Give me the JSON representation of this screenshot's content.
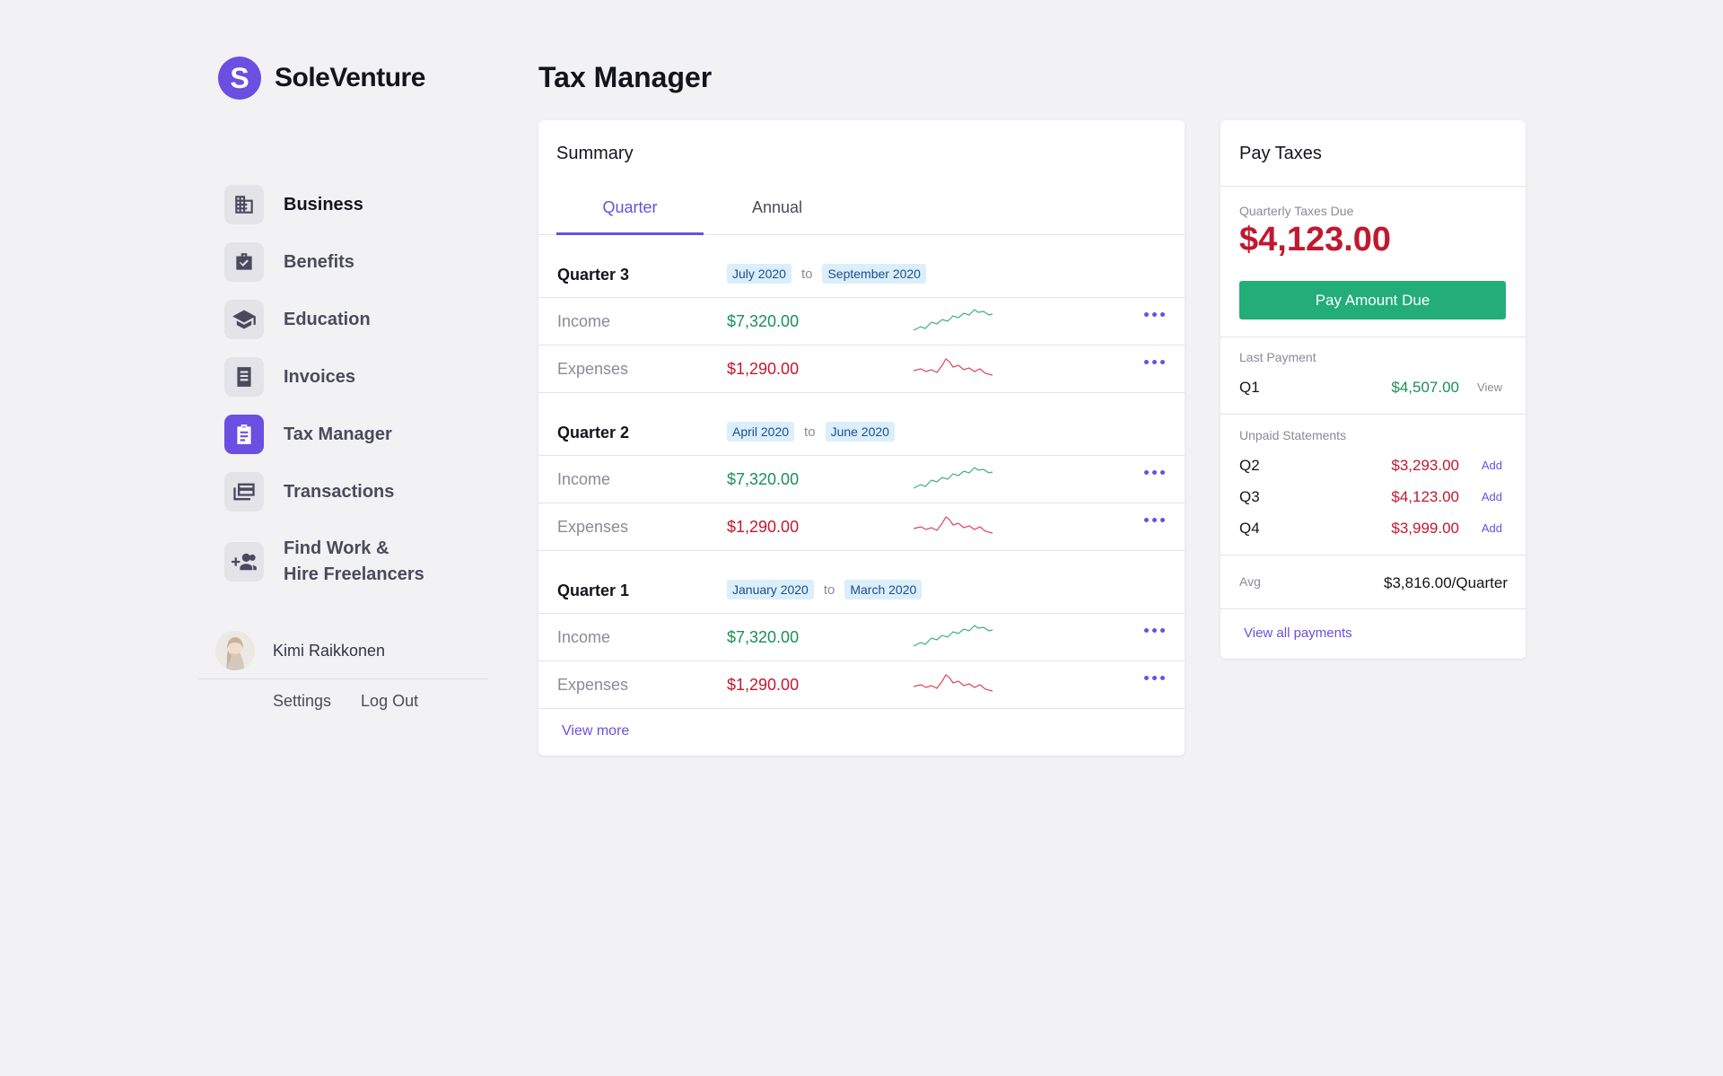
{
  "brand": {
    "logo_letter": "S",
    "name": "SoleVenture",
    "accent": "#6b4fe0"
  },
  "sidebar": {
    "items": [
      {
        "label": "Business",
        "icon": "building-icon"
      },
      {
        "label": "Benefits",
        "icon": "briefcase-check-icon"
      },
      {
        "label": "Education",
        "icon": "graduation-cap-icon"
      },
      {
        "label": "Invoices",
        "icon": "receipt-icon"
      },
      {
        "label": "Tax Manager",
        "icon": "clipboard-icon"
      },
      {
        "label": "Transactions",
        "icon": "cards-icon"
      },
      {
        "label_line1": "Find Work &",
        "label_line2": "Hire Freelancers",
        "icon": "add-people-icon"
      }
    ],
    "active": "Tax Manager"
  },
  "profile": {
    "name": "Kimi Raikkonen",
    "settings": "Settings",
    "logout": "Log Out"
  },
  "page": {
    "title": "Tax Manager"
  },
  "summary": {
    "title": "Summary",
    "tabs": [
      "Quarter",
      "Annual"
    ],
    "active_tab": "Quarter",
    "to_label": "to",
    "quarters": [
      {
        "name": "Quarter 3",
        "from": "July 2020",
        "to": "September 2020",
        "income_label": "Income",
        "income": "$7,320.00",
        "expenses_label": "Expenses",
        "expenses": "$1,290.00"
      },
      {
        "name": "Quarter 2",
        "from": "April 2020",
        "to": "June 2020",
        "income_label": "Income",
        "income": "$7,320.00",
        "expenses_label": "Expenses",
        "expenses": "$1,290.00"
      },
      {
        "name": "Quarter 1",
        "from": "January 2020",
        "to": "March 2020",
        "income_label": "Income",
        "income": "$7,320.00",
        "expenses_label": "Expenses",
        "expenses": "$1,290.00"
      }
    ],
    "view_more": "View more"
  },
  "pay_taxes": {
    "title": "Pay Taxes",
    "due_label": "Quarterly Taxes Due",
    "due_amount": "$4,123.00",
    "pay_button": "Pay Amount Due",
    "last_payment_label": "Last Payment",
    "last_payment": {
      "quarter": "Q1",
      "amount": "$4,507.00",
      "action": "View"
    },
    "unpaid_label": "Unpaid Statements",
    "unpaid": [
      {
        "quarter": "Q2",
        "amount": "$3,293.00",
        "action": "Add"
      },
      {
        "quarter": "Q3",
        "amount": "$4,123.00",
        "action": "Add"
      },
      {
        "quarter": "Q4",
        "amount": "$3,999.00",
        "action": "Add"
      }
    ],
    "avg_label": "Avg",
    "avg_value": "$3,816.00/Quarter",
    "view_all": "View all payments"
  },
  "colors": {
    "income": "#1a8f5a",
    "expense": "#c0192f",
    "pay_button": "#22ad79",
    "background": "#f2f2f4"
  }
}
